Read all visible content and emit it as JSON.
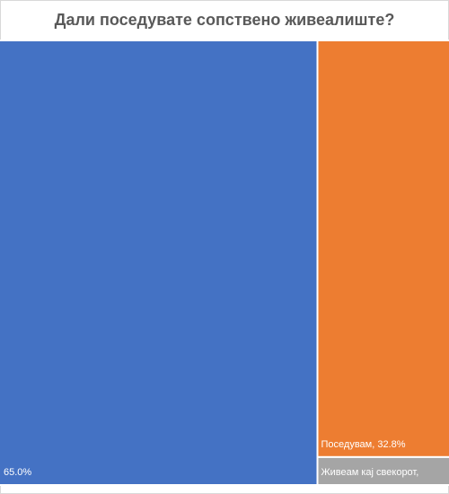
{
  "chart_data": {
    "type": "treemap",
    "title": "Дали поседувате сопствено живеалиште?",
    "values": [
      65.0,
      32.8,
      2.2
    ],
    "value_labels": [
      "65.0%",
      "Поседувам, 32.8%",
      "Живеам кај свекорот,"
    ],
    "colors": [
      "#4472c4",
      "#ed7d31",
      "#a5a5a5"
    ]
  }
}
